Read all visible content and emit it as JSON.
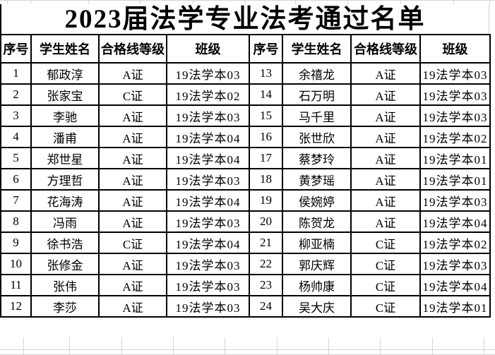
{
  "title": "2023届法学专业法考通过名单",
  "table": {
    "headers": [
      "序号",
      "学生姓名",
      "合格线等级",
      "班级",
      "序号",
      "学生姓名",
      "合格线等级",
      "班级"
    ],
    "rows": [
      [
        "1",
        "郁政淳",
        "A证",
        "19法学本03",
        "13",
        "余禧龙",
        "A证",
        "19法学本03"
      ],
      [
        "2",
        "张家宝",
        "C证",
        "19法学本02",
        "14",
        "石万明",
        "A证",
        "19法学本03"
      ],
      [
        "3",
        "李驰",
        "A证",
        "19法学本03",
        "15",
        "马千里",
        "A证",
        "19法学本03"
      ],
      [
        "4",
        "潘甫",
        "A证",
        "19法学本04",
        "16",
        "张世欣",
        "A证",
        "19法学本02"
      ],
      [
        "5",
        "郑世星",
        "A证",
        "19法学本04",
        "17",
        "蔡梦玲",
        "A证",
        "19法学本01"
      ],
      [
        "6",
        "方理哲",
        "A证",
        "19法学本03",
        "18",
        "黄梦瑶",
        "A证",
        "19法学本01"
      ],
      [
        "7",
        "花海涛",
        "A证",
        "19法学本04",
        "19",
        "侯婉婷",
        "A证",
        "19法学本03"
      ],
      [
        "8",
        "冯雨",
        "A证",
        "19法学本03",
        "20",
        "陈贺龙",
        "A证",
        "19法学本04"
      ],
      [
        "9",
        "徐书浩",
        "C证",
        "19法学本04",
        "21",
        "柳亚楠",
        "C证",
        "19法学本02"
      ],
      [
        "10",
        "张修金",
        "A证",
        "19法学本03",
        "22",
        "郭庆辉",
        "C证",
        "19法学本03"
      ],
      [
        "11",
        "张伟",
        "A证",
        "19法学本03",
        "23",
        "杨帅康",
        "C证",
        "19法学本04"
      ],
      [
        "12",
        "李莎",
        "A证",
        "19法学本03",
        "24",
        "吴大庆",
        "C证",
        "19法学本01"
      ]
    ]
  },
  "colors": {
    "border": "#000000",
    "gridline": "#d4d4d4",
    "text": "#000000",
    "background": "#ffffff"
  }
}
